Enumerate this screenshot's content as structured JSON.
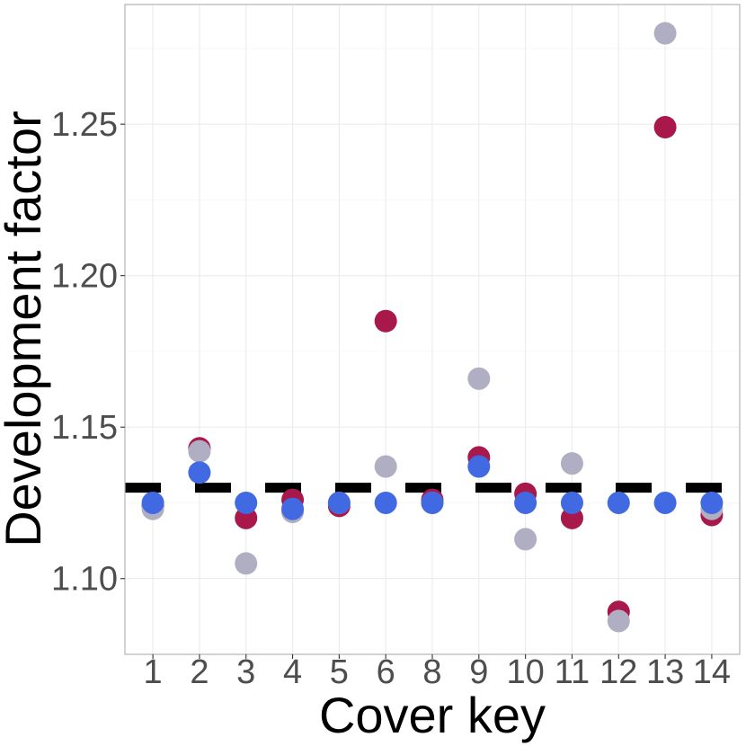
{
  "chart_data": {
    "type": "scatter",
    "xlabel": "Cover key",
    "ylabel": "Development factor",
    "categories": [
      "1",
      "2",
      "3",
      "4",
      "5",
      "6",
      "8",
      "9",
      "10",
      "11",
      "12",
      "13",
      "14"
    ],
    "y_ticks": [
      1.1,
      1.15,
      1.2,
      1.25
    ],
    "y_tick_labels": [
      "1.10",
      "1.15",
      "1.20",
      "1.25"
    ],
    "ylim": [
      1.075,
      1.2895
    ],
    "grid": true,
    "legend": "none",
    "reference_line": {
      "value": 1.13,
      "style": "dashed",
      "color": "#000000"
    },
    "series": [
      {
        "color": "#A8184A",
        "values": [
          1.124,
          1.143,
          1.12,
          1.126,
          1.124,
          1.185,
          1.126,
          1.14,
          1.128,
          1.12,
          1.089,
          1.249,
          1.121
        ]
      },
      {
        "color": "#B0AEC2",
        "values": [
          1.123,
          1.142,
          1.105,
          1.122,
          1.125,
          1.137,
          1.125,
          1.166,
          1.113,
          1.138,
          1.086,
          1.28,
          1.123
        ]
      },
      {
        "color": "#4169E1",
        "values": [
          1.125,
          1.135,
          1.125,
          1.123,
          1.125,
          1.125,
          1.125,
          1.137,
          1.125,
          1.125,
          1.125,
          1.125,
          1.125
        ]
      }
    ]
  }
}
